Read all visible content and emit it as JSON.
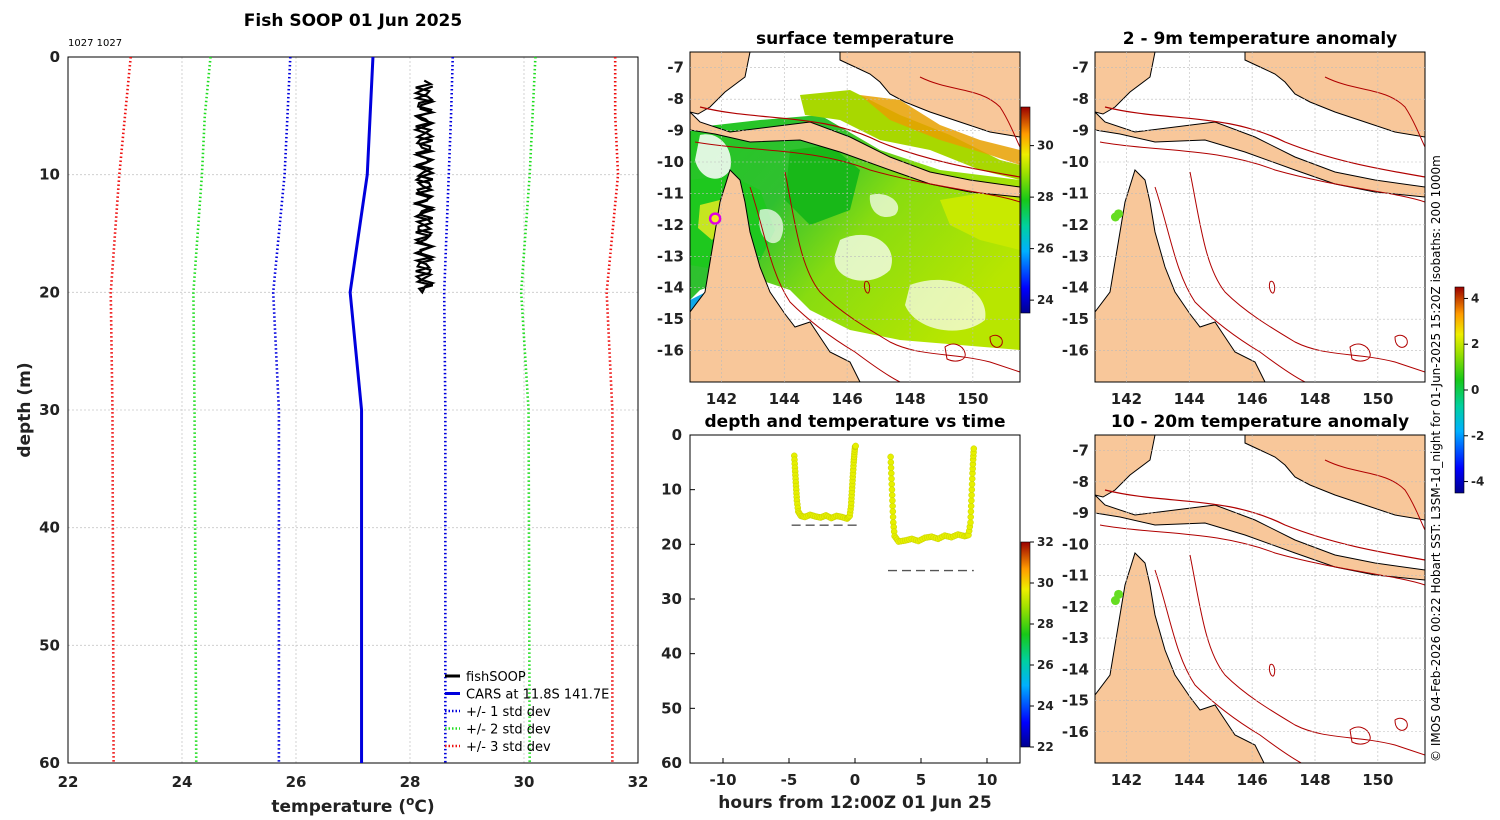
{
  "profile": {
    "title": "Fish SOOP 01 Jun 2025",
    "corner_label": "1027 1027",
    "xlabel": "temperature (",
    "xlabel_sup": "o",
    "xlabel_end": "C)",
    "ylabel": "depth (m)",
    "xlim": [
      22,
      32
    ],
    "ylim": [
      0,
      60
    ],
    "xticks": [
      22,
      24,
      26,
      28,
      30,
      32
    ],
    "yticks": [
      0,
      10,
      20,
      30,
      40,
      50,
      60
    ],
    "legend": [
      {
        "label": "fishSOOP",
        "color": "#000000",
        "style": "solid"
      },
      {
        "label": "CARS at 11.8S 141.7E",
        "color": "#0000dd",
        "style": "solid"
      },
      {
        "label": "+/- 1 std dev",
        "color": "#0000dd",
        "style": "dotted"
      },
      {
        "label": "+/- 2 std dev",
        "color": "#22dd22",
        "style": "dotted"
      },
      {
        "label": "+/- 3 std dev",
        "color": "#ee1111",
        "style": "dotted"
      }
    ]
  },
  "chart_data": [
    {
      "type": "line",
      "title": "Fish SOOP 01 Jun 2025",
      "xlabel": "temperature (oC)",
      "ylabel": "depth (m)",
      "xlim": [
        22,
        32
      ],
      "ylim": [
        0,
        60
      ],
      "y_reversed": true,
      "depth": [
        0,
        5,
        10,
        20,
        30,
        60
      ],
      "series": [
        {
          "name": "CARS at 11.8S 141.7E",
          "color": "#0000dd",
          "style": "solid",
          "values": [
            27.35,
            27.3,
            27.25,
            26.95,
            27.15,
            27.15
          ]
        },
        {
          "name": "CARS +1 std dev",
          "color": "#0000dd",
          "style": "dotted",
          "values": [
            28.75,
            28.72,
            28.68,
            28.6,
            28.62,
            28.62
          ]
        },
        {
          "name": "CARS -1 std dev",
          "color": "#0000dd",
          "style": "dotted",
          "values": [
            25.9,
            25.85,
            25.8,
            25.6,
            25.7,
            25.7
          ]
        },
        {
          "name": "CARS +2 std dev",
          "color": "#22dd22",
          "style": "dotted",
          "values": [
            30.2,
            30.15,
            30.1,
            29.95,
            30.08,
            30.1
          ]
        },
        {
          "name": "CARS -2 std dev",
          "color": "#22dd22",
          "style": "dotted",
          "values": [
            24.5,
            24.4,
            24.35,
            24.2,
            24.22,
            24.25
          ]
        },
        {
          "name": "CARS +3 std dev",
          "color": "#ee1111",
          "style": "dotted",
          "values": [
            31.6,
            31.6,
            31.65,
            31.45,
            31.55,
            31.55
          ]
        },
        {
          "name": "CARS -3 std dev",
          "color": "#ee1111",
          "style": "dotted",
          "values": [
            23.1,
            23.0,
            22.9,
            22.75,
            22.78,
            22.8
          ]
        }
      ],
      "fishSOOP": {
        "name": "fishSOOP",
        "color": "#000000",
        "temperature_range": [
          28.1,
          28.4
        ],
        "depth_range": [
          2,
          20
        ]
      }
    },
    {
      "type": "scatter",
      "title": "depth and temperature vs time",
      "xlabel": "hours from 12:00Z 01 Jun 25",
      "ylabel": "",
      "xlim": [
        -12.5,
        12.5
      ],
      "ylim": [
        0,
        60
      ],
      "y_reversed": true,
      "xticks": [
        -10,
        -5,
        0,
        5,
        10
      ],
      "yticks": [
        0,
        10,
        20,
        30,
        40,
        50,
        60
      ],
      "colorbar": {
        "ticks": [
          22,
          24,
          26,
          28,
          30,
          32
        ],
        "range": [
          22,
          32
        ]
      },
      "dive1": {
        "x": [
          -4.6,
          -4.55,
          -4.5,
          -4.45,
          -4.4,
          -4.3,
          -4.1,
          -3.8,
          -3.4,
          -3.0,
          -2.6,
          -2.2,
          -1.8,
          -1.4,
          -1.0,
          -0.6,
          -0.4,
          -0.3,
          -0.25,
          -0.2,
          -0.15,
          -0.1,
          -0.05,
          0.0,
          0.05
        ],
        "depth": [
          3.8,
          6,
          8,
          10,
          12,
          14,
          14.8,
          15,
          14.6,
          14.9,
          15.1,
          14.7,
          15.2,
          14.8,
          15.0,
          15.3,
          14.8,
          13,
          11,
          9,
          7,
          5,
          3.5,
          2.2,
          2.0
        ],
        "temperature": 28.8
      },
      "dive2": {
        "x": [
          2.7,
          2.75,
          2.8,
          2.85,
          2.9,
          3.0,
          3.3,
          3.8,
          4.3,
          4.8,
          5.3,
          5.8,
          6.3,
          6.8,
          7.3,
          7.8,
          8.3,
          8.6,
          8.75,
          8.8,
          8.85,
          8.9,
          8.95,
          9.0
        ],
        "depth": [
          4,
          7,
          10,
          13,
          16,
          18.5,
          19.5,
          19.3,
          19.0,
          19.4,
          18.8,
          18.6,
          19.0,
          18.4,
          18.7,
          18.2,
          18.5,
          18.3,
          16,
          13,
          10,
          7,
          4.5,
          2.5
        ],
        "temperature": 28.8
      },
      "reference_depths": [
        {
          "x_range": [
            -4.8,
            0.3
          ],
          "depth": 16.5
        },
        {
          "x_range": [
            2.5,
            9.0
          ],
          "depth": 24.8
        }
      ]
    },
    {
      "type": "heatmap",
      "title": "surface temperature",
      "xticks": [
        142,
        144,
        146,
        148,
        150
      ],
      "yticks": [
        -7,
        -8,
        -9,
        -10,
        -11,
        -12,
        -13,
        -14,
        -15,
        -16
      ],
      "xlim": [
        141,
        151.5
      ],
      "ylim": [
        -17,
        -6.5
      ],
      "colorbar": {
        "ticks": [
          24,
          26,
          28,
          30
        ],
        "range": [
          23.5,
          31.5
        ]
      },
      "vessel_position": {
        "lon": 141.8,
        "lat": -11.8
      }
    },
    {
      "type": "heatmap",
      "title": "2 - 9m temperature anomaly",
      "xticks": [
        142,
        144,
        146,
        148,
        150
      ],
      "yticks": [
        -7,
        -8,
        -9,
        -10,
        -11,
        -12,
        -13,
        -14,
        -15,
        -16
      ],
      "xlim": [
        141,
        151.5
      ],
      "ylim": [
        -17,
        -6.5
      ],
      "colorbar": {
        "ticks": [
          -4,
          -2,
          0,
          2,
          4
        ],
        "range": [
          -4.5,
          4.5
        ]
      },
      "points": [
        {
          "lon": 141.75,
          "lat": -11.65
        },
        {
          "lon": 141.65,
          "lat": -11.75
        }
      ]
    },
    {
      "type": "heatmap",
      "title": "10 - 20m temperature anomaly",
      "xticks": [
        142,
        144,
        146,
        148,
        150
      ],
      "yticks": [
        -7,
        -8,
        -9,
        -10,
        -11,
        -12,
        -13,
        -14,
        -15,
        -16
      ],
      "xlim": [
        141,
        151.5
      ],
      "ylim": [
        -17,
        -6.5
      ],
      "points": [
        {
          "lon": 141.75,
          "lat": -11.6
        },
        {
          "lon": 141.65,
          "lat": -11.8
        }
      ]
    }
  ],
  "panels": {
    "surface_title": "surface temperature",
    "timeseries_title": "depth and temperature vs time",
    "timeseries_xlabel": "hours from 12:00Z 01 Jun 25",
    "anomaly1_title": "2 - 9m temperature anomaly",
    "anomaly2_title": "10 - 20m temperature anomaly"
  },
  "credit": "© IMOS 04-Feb-2026 00:22 Hobart SST: L3SM-1d_night for 01-Jun-2025 15:20Z isobaths: 200  1000m",
  "colors": {
    "land": "#f8c79a",
    "isobath": "#b00000",
    "coast": "#000000",
    "grid": "#c8c8c8"
  }
}
